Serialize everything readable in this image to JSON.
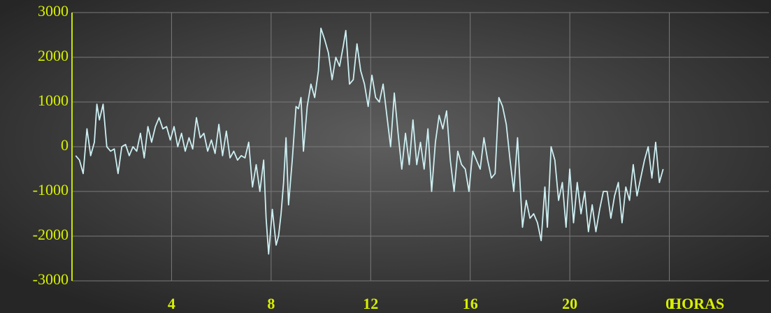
{
  "chart_data": {
    "type": "line",
    "x_label": "HORAS",
    "x": [
      0.15,
      0.3,
      0.45,
      0.6,
      0.75,
      0.9,
      1.0,
      1.1,
      1.25,
      1.4,
      1.55,
      1.7,
      1.85,
      2.0,
      2.15,
      2.3,
      2.45,
      2.6,
      2.75,
      2.9,
      3.05,
      3.2,
      3.35,
      3.5,
      3.65,
      3.8,
      3.95,
      4.1,
      4.25,
      4.4,
      4.55,
      4.7,
      4.85,
      5.0,
      5.15,
      5.3,
      5.45,
      5.6,
      5.75,
      5.9,
      6.05,
      6.2,
      6.35,
      6.5,
      6.65,
      6.8,
      6.95,
      7.1,
      7.25,
      7.4,
      7.55,
      7.7,
      7.8,
      7.9,
      8.05,
      8.2,
      8.3,
      8.4,
      8.5,
      8.6,
      8.7,
      8.85,
      9.0,
      9.1,
      9.2,
      9.3,
      9.45,
      9.6,
      9.75,
      9.9,
      10.0,
      10.15,
      10.3,
      10.45,
      10.6,
      10.75,
      10.9,
      11.0,
      11.15,
      11.3,
      11.45,
      11.6,
      11.75,
      11.9,
      12.05,
      12.2,
      12.35,
      12.5,
      12.65,
      12.8,
      12.95,
      13.1,
      13.25,
      13.4,
      13.55,
      13.7,
      13.85,
      14.0,
      14.15,
      14.3,
      14.45,
      14.6,
      14.75,
      14.9,
      15.05,
      15.2,
      15.35,
      15.5,
      15.65,
      15.8,
      15.95,
      16.1,
      16.25,
      16.4,
      16.55,
      16.7,
      16.85,
      17.0,
      17.15,
      17.3,
      17.45,
      17.6,
      17.75,
      17.9,
      18.0,
      18.1,
      18.25,
      18.4,
      18.55,
      18.7,
      18.85,
      19.0,
      19.1,
      19.25,
      19.4,
      19.55,
      19.7,
      19.85,
      20.0,
      20.15,
      20.3,
      20.45,
      20.6,
      20.75,
      20.9,
      21.05,
      21.2,
      21.35,
      21.5,
      21.65,
      21.8,
      21.95,
      22.1,
      22.25,
      22.4,
      22.55,
      22.7,
      22.85,
      23.0,
      23.15,
      23.3,
      23.45,
      23.6,
      23.75
    ],
    "series": [
      {
        "color": "#cdeff2",
        "values": [
          -200,
          -300,
          -600,
          400,
          -200,
          100,
          950,
          600,
          950,
          0,
          -100,
          -50,
          -600,
          0,
          50,
          -200,
          0,
          -100,
          300,
          -250,
          450,
          100,
          450,
          650,
          400,
          450,
          150,
          450,
          0,
          300,
          -100,
          200,
          -50,
          650,
          200,
          300,
          -100,
          150,
          -150,
          500,
          -200,
          350,
          -250,
          -100,
          -300,
          -200,
          -250,
          100,
          -900,
          -400,
          -1000,
          -300,
          -1600,
          -2400,
          -1400,
          -2200,
          -2000,
          -1500,
          -800,
          200,
          -1300,
          -300,
          900,
          850,
          1100,
          -100,
          900,
          1400,
          1100,
          1700,
          2650,
          2400,
          2100,
          1500,
          2000,
          1800,
          2250,
          2600,
          1400,
          1500,
          2300,
          1700,
          1400,
          900,
          1600,
          1100,
          1000,
          1400,
          700,
          0,
          1200,
          300,
          -500,
          300,
          -400,
          600,
          -400,
          100,
          -500,
          400,
          -1000,
          100,
          700,
          400,
          800,
          -300,
          -1000,
          -100,
          -400,
          -500,
          -1000,
          -100,
          -300,
          -500,
          200,
          -300,
          -700,
          -600,
          1100,
          900,
          500,
          -300,
          -1000,
          200,
          -800,
          -1800,
          -1200,
          -1600,
          -1500,
          -1700,
          -2100,
          -900,
          -1800,
          0,
          -300,
          -1200,
          -800,
          -1800,
          -500,
          -1700,
          -800,
          -1500,
          -1000,
          -1900,
          -1300,
          -1900,
          -1400,
          -1000,
          -1000,
          -1600,
          -1100,
          -800,
          -1700,
          -900,
          -1200,
          -400,
          -1100,
          -700,
          -300,
          0,
          -700,
          100,
          -800,
          -500
        ]
      }
    ],
    "xlim": [
      0,
      28
    ],
    "xticks": [
      4,
      8,
      12,
      16,
      20,
      {
        "value": 24,
        "label": "0"
      }
    ],
    "ylim": [
      -3000,
      3000
    ],
    "yticks": [
      -3000,
      -2000,
      -1000,
      0,
      1000,
      2000,
      3000
    ],
    "grid": true,
    "axis_color": "#c8e600"
  }
}
